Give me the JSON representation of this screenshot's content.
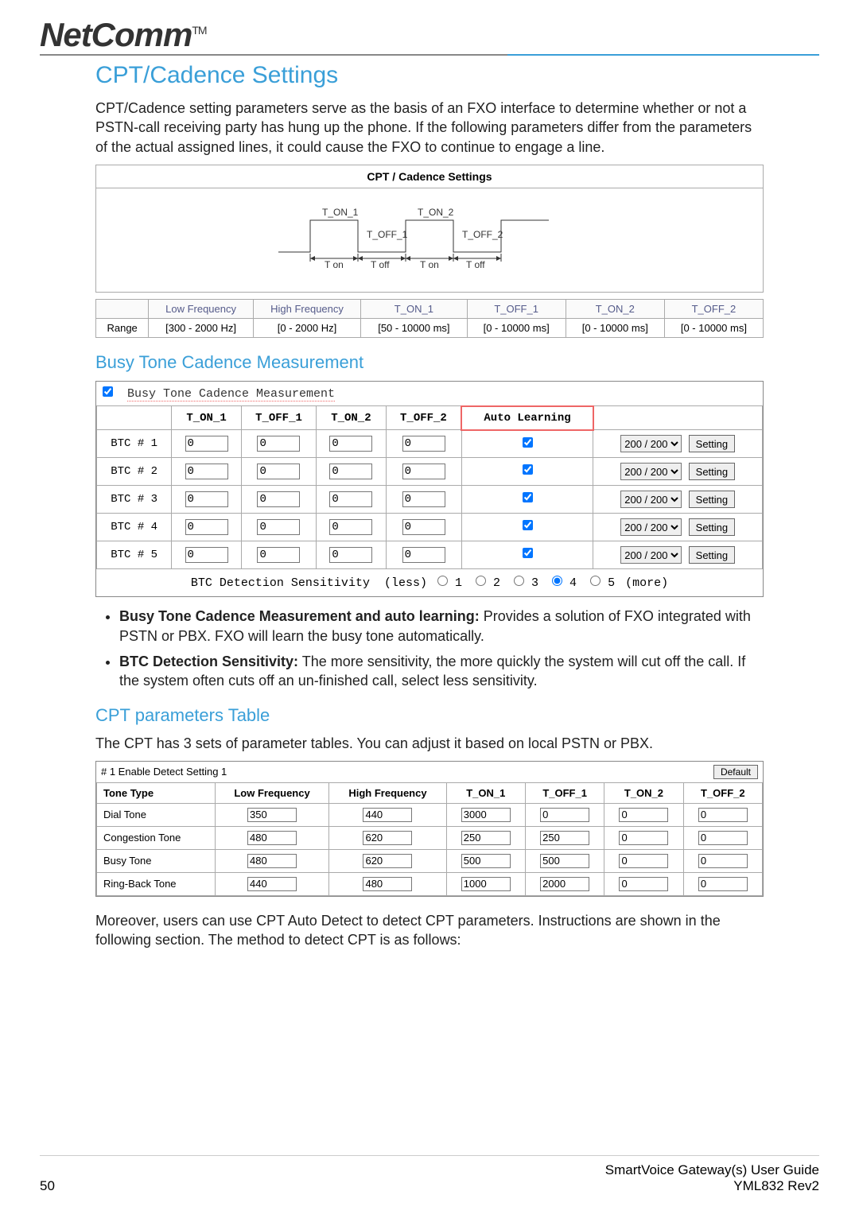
{
  "logo": {
    "text": "NetComm",
    "tm": "TM"
  },
  "title": "CPT/Cadence Settings",
  "intro": "CPT/Cadence setting parameters serve as the basis of an FXO interface to determine whether or not a PSTN-call receiving party has hung up the phone. If the following parameters differ from the parameters of the actual assigned lines, it could cause the FXO to continue to engage a line.",
  "cadence_diagram": {
    "panel_title": "CPT / Cadence Settings",
    "labels": {
      "ton1": "T_ON_1",
      "toff1": "T_OFF_1",
      "ton2": "T_ON_2",
      "toff2": "T_OFF_2"
    },
    "axis": {
      "ton": "T on",
      "toff": "T off"
    },
    "colors": {
      "line": "#333333",
      "bg": "#ffffff"
    }
  },
  "range_table": {
    "headers": [
      "",
      "Low Frequency",
      "High Frequency",
      "T_ON_1",
      "T_OFF_1",
      "T_ON_2",
      "T_OFF_2"
    ],
    "row_label": "Range",
    "values": [
      "[300 - 2000 Hz]",
      "[0 - 2000 Hz]",
      "[50 - 10000 ms]",
      "[0 - 10000 ms]",
      "[0 - 10000 ms]",
      "[0 - 10000 ms]"
    ]
  },
  "btc": {
    "heading": "Busy Tone Cadence Measurement",
    "panel_label": "Busy Tone Cadence Measurement",
    "columns": [
      "",
      "T_ON_1",
      "T_OFF_1",
      "T_ON_2",
      "T_OFF_2",
      "Auto Learning",
      ""
    ],
    "rows": [
      {
        "label": "BTC # 1",
        "v": [
          "0",
          "0",
          "0",
          "0"
        ],
        "auto": true,
        "select": "200 / 200",
        "button": "Setting"
      },
      {
        "label": "BTC # 2",
        "v": [
          "0",
          "0",
          "0",
          "0"
        ],
        "auto": true,
        "select": "200 / 200",
        "button": "Setting"
      },
      {
        "label": "BTC # 3",
        "v": [
          "0",
          "0",
          "0",
          "0"
        ],
        "auto": true,
        "select": "200 / 200",
        "button": "Setting"
      },
      {
        "label": "BTC # 4",
        "v": [
          "0",
          "0",
          "0",
          "0"
        ],
        "auto": true,
        "select": "200 / 200",
        "button": "Setting"
      },
      {
        "label": "BTC # 5",
        "v": [
          "0",
          "0",
          "0",
          "0"
        ],
        "auto": true,
        "select": "200 / 200",
        "button": "Setting"
      }
    ],
    "sensitivity": {
      "label": "BTC Detection Sensitivity",
      "less": "(less)",
      "more": "(more)",
      "options": [
        "1",
        "2",
        "3",
        "4",
        "5"
      ],
      "selected": "4"
    }
  },
  "bullets": [
    {
      "bold": "Busy Tone Cadence Measurement and auto learning:",
      "text": " Provides a solution of FXO integrated with PSTN or PBX. FXO will learn the busy tone automatically."
    },
    {
      "bold": "BTC Detection Sensitivity:",
      "text": " The more sensitivity, the more quickly the system will cut off the call. If the system often cuts off an un-finished call, select less sensitivity."
    }
  ],
  "cpt_table": {
    "heading": "CPT parameters Table",
    "desc": "The CPT has 3 sets of parameter tables. You can adjust it based on local PSTN or PBX.",
    "head_label": "# 1 Enable Detect  Setting 1",
    "default_btn": "Default",
    "columns": [
      "Tone Type",
      "Low Frequency",
      "High Frequency",
      "T_ON_1",
      "T_OFF_1",
      "T_ON_2",
      "T_OFF_2"
    ],
    "rows": [
      {
        "label": "Dial Tone",
        "v": [
          "350",
          "440",
          "3000",
          "0",
          "0",
          "0"
        ]
      },
      {
        "label": "Congestion Tone",
        "v": [
          "480",
          "620",
          "250",
          "250",
          "0",
          "0"
        ]
      },
      {
        "label": "Busy Tone",
        "v": [
          "480",
          "620",
          "500",
          "500",
          "0",
          "0"
        ]
      },
      {
        "label": "Ring-Back Tone",
        "v": [
          "440",
          "480",
          "1000",
          "2000",
          "0",
          "0"
        ]
      }
    ]
  },
  "closing": "Moreover, users can use CPT Auto Detect to detect CPT parameters. Instructions are shown in the following section. The method to detect CPT is as follows:",
  "footer": {
    "page": "50",
    "guide": "SmartVoice Gateway(s) User Guide",
    "rev": "YML832 Rev2"
  },
  "colors": {
    "accent": "#3a9fd8",
    "border": "#aaaaaa",
    "highlight": "#e66"
  }
}
